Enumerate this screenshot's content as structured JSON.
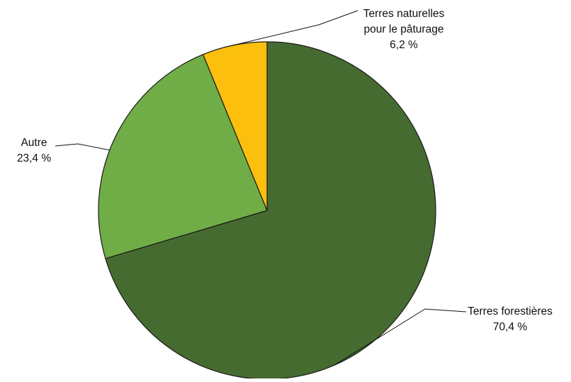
{
  "chart_data": {
    "type": "pie",
    "title": "",
    "slices": [
      {
        "label": "Terres forestières",
        "value": 70.4,
        "value_label": "70,4 %",
        "color": "#466b31"
      },
      {
        "label": "Autre",
        "value": 23.4,
        "value_label": "23,4 %",
        "color": "#70ad47"
      },
      {
        "label": "Terres naturelles pour le pâturage",
        "label_lines": [
          "Terres naturelles",
          "pour le pâturage"
        ],
        "value": 6.2,
        "value_label": "6,2 %",
        "color": "#fcbf0e"
      }
    ],
    "start_angle": "12 o'clock",
    "direction": "clockwise",
    "labels": "outside with leader lines",
    "legend": "none"
  }
}
